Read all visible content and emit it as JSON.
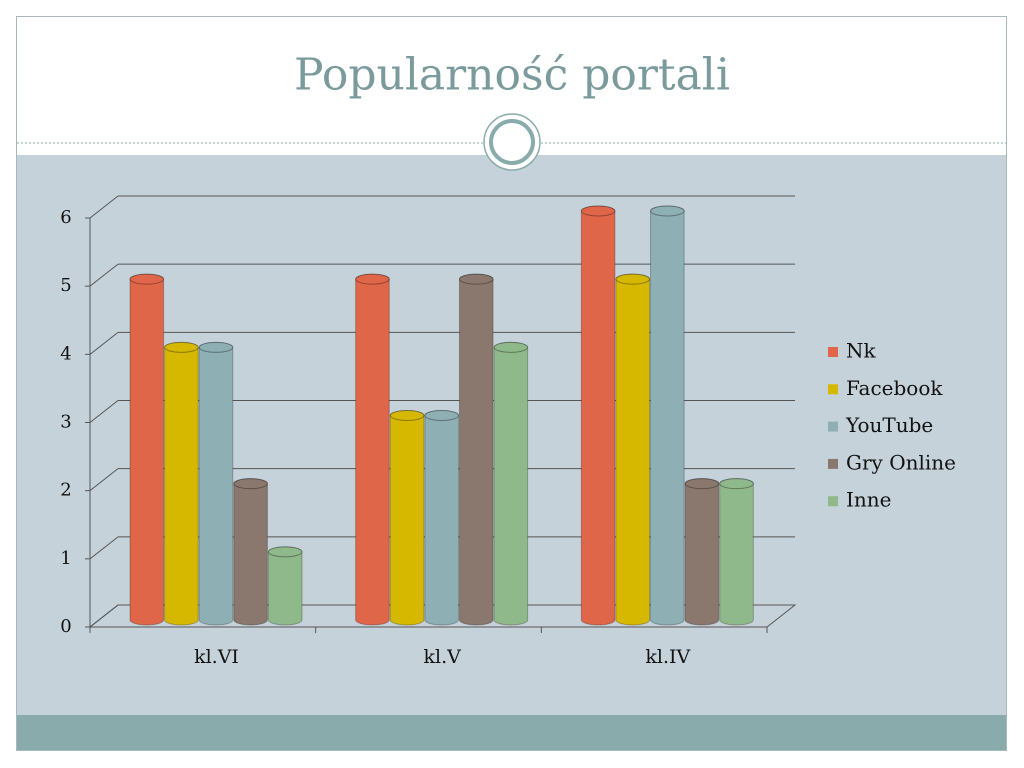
{
  "chart_data": {
    "type": "bar",
    "title": "Popularność portali",
    "categories": [
      "kl.VI",
      "kl.V",
      "kl.IV"
    ],
    "series": [
      {
        "name": "Nk",
        "color": "#e0664a",
        "values": [
          5,
          5,
          6
        ]
      },
      {
        "name": "Facebook",
        "color": "#d6b800",
        "values": [
          4,
          3,
          5
        ]
      },
      {
        "name": "YouTube",
        "color": "#8eafb4",
        "values": [
          4,
          3,
          6
        ]
      },
      {
        "name": "Gry Online",
        "color": "#8a786e",
        "values": [
          2,
          5,
          2
        ]
      },
      {
        "name": "Inne",
        "color": "#8fb98a",
        "values": [
          1,
          4,
          2
        ]
      }
    ],
    "ylim": [
      0,
      6
    ],
    "yticks": [
      0,
      1,
      2,
      3,
      4,
      5,
      6
    ],
    "grid": true,
    "legend": "right"
  }
}
